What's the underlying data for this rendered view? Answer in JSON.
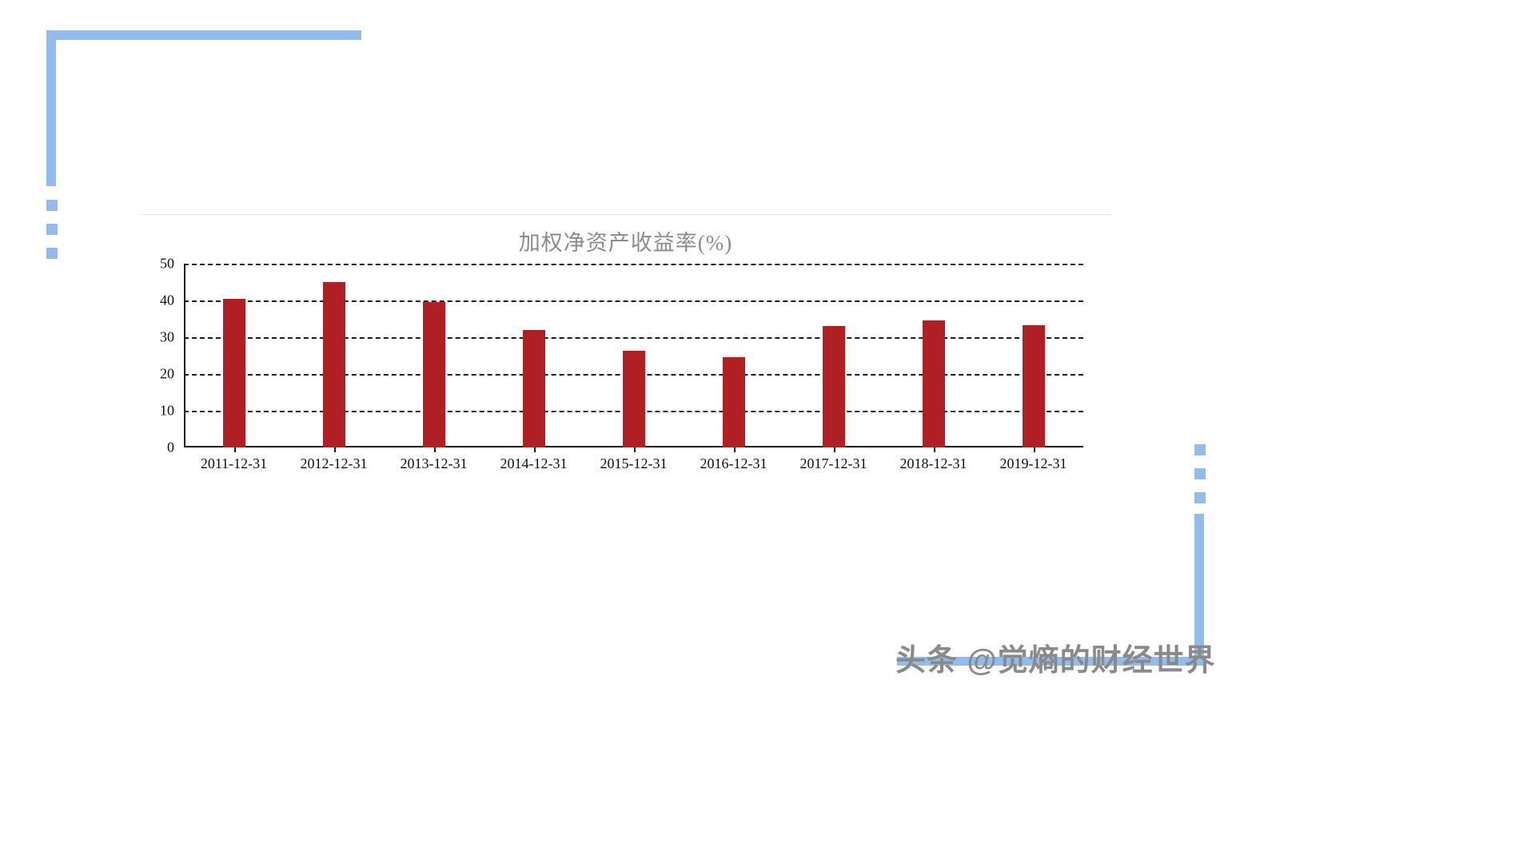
{
  "decor": {
    "accent_color": "#92BCEC"
  },
  "chart_data": {
    "type": "bar",
    "title": "加权净资产收益率(%)",
    "categories": [
      "2011-12-31",
      "2012-12-31",
      "2013-12-31",
      "2014-12-31",
      "2015-12-31",
      "2016-12-31",
      "2017-12-31",
      "2018-12-31",
      "2019-12-31"
    ],
    "values": [
      40.5,
      45.0,
      39.5,
      32.0,
      26.2,
      24.5,
      33.0,
      34.5,
      33.2
    ],
    "xlabel": "",
    "ylabel": "",
    "ylim": [
      0,
      50
    ],
    "yticks": [
      0,
      10,
      20,
      30,
      40,
      50
    ],
    "bar_color": "#B01F24",
    "grid": "horizontal-dashed",
    "legend_position": "none"
  },
  "watermark": {
    "text": "头条 @觉熵的财经世界"
  }
}
